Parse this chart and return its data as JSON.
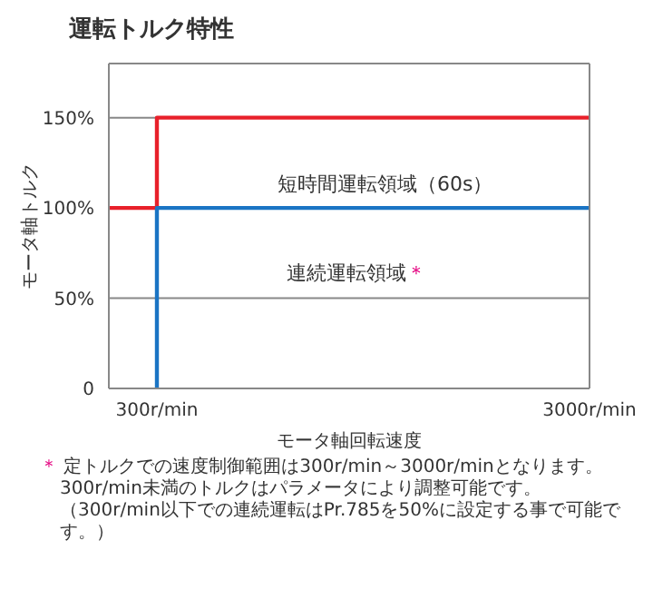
{
  "chart_data": {
    "type": "line",
    "title": "運転トルク特性",
    "xlabel": "モータ軸回転速度",
    "ylabel": "モータ軸トルク",
    "series": [
      {
        "color": "#e8202a",
        "x": [
          0,
          300,
          300,
          3000
        ],
        "values": [
          100,
          100,
          150,
          150
        ]
      },
      {
        "color": "#1a74c4",
        "x": [
          300,
          300,
          3000
        ],
        "values": [
          0,
          100,
          100
        ]
      }
    ],
    "xlim": [
      0,
      3000
    ],
    "xticks": [
      {
        "value": 300,
        "label": "300r/min"
      },
      {
        "value": 3000,
        "label": "3000r/min"
      }
    ],
    "ylim": [
      0,
      180
    ],
    "yticks": [
      0,
      {
        "value": 50,
        "label": "50%"
      },
      {
        "value": 100,
        "label": "100%"
      },
      {
        "value": 150,
        "label": "150%"
      }
    ],
    "grid": "y",
    "marker": "none",
    "line_style": "solid",
    "legend": false,
    "annotations": [
      "短時間運転領域（60s）",
      "連続運転領域＊",
      "＊ 定トルクでの速度制御範囲は300r/min～3000r/minとなります。",
      "300r/min未満のトルクはパラメータにより調整可能です。（300r/min以下での連続運転はPr.785を50%に設定する事で可能です。）"
    ]
  }
}
